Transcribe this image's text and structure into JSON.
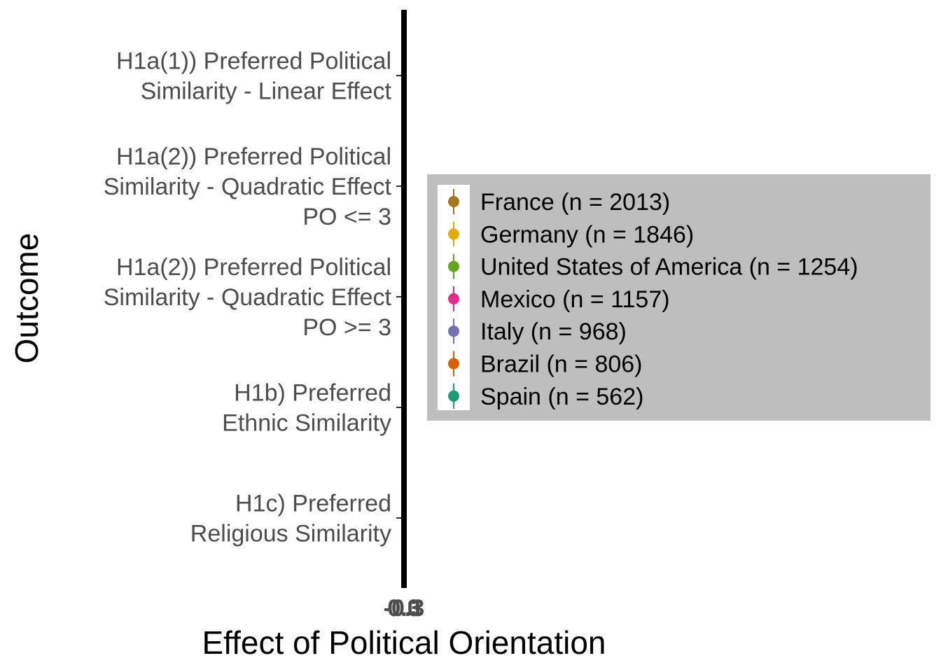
{
  "chart_data": {
    "type": "scatter",
    "title": "",
    "xlabel": "Effect of Political Orientation",
    "ylabel": "Outcome",
    "x_tick_labels": [
      "-0.3",
      "0.0",
      "0.3"
    ],
    "categories": [
      [
        "H1a(1)) Preferred Political",
        "Similarity - Linear Effect"
      ],
      [
        "H1a(2)) Preferred Political",
        "Similarity - Quadratic Effect",
        "PO <= 3"
      ],
      [
        "H1a(2)) Preferred Political",
        "Similarity - Quadratic Effect",
        "PO >= 3"
      ],
      [
        "H1b) Preferred",
        "Ethnic Similarity"
      ],
      [
        "H1c) Preferred",
        "Religious Similarity"
      ]
    ],
    "legend_position": "right",
    "grid": false,
    "series": [
      {
        "name": "France (n = 2013)",
        "color": "#A6761D",
        "values": [
          0.0,
          0.0,
          0.0,
          0.0,
          0.0
        ]
      },
      {
        "name": "Germany (n = 1846)",
        "color": "#E6AB02",
        "values": [
          0.0,
          0.0,
          0.0,
          0.0,
          0.0
        ]
      },
      {
        "name": "United States of America (n = 1254)",
        "color": "#66A61E",
        "values": [
          0.0,
          0.0,
          0.0,
          0.0,
          0.0
        ]
      },
      {
        "name": "Mexico (n = 1157)",
        "color": "#E7298A",
        "values": [
          0.0,
          0.0,
          0.0,
          0.0,
          0.0
        ]
      },
      {
        "name": "Italy (n = 968)",
        "color": "#7570B3",
        "values": [
          0.0,
          0.0,
          0.0,
          0.0,
          0.0
        ]
      },
      {
        "name": "Brazil (n = 806)",
        "color": "#D95F02",
        "values": [
          0.0,
          0.0,
          0.0,
          0.0,
          0.0
        ]
      },
      {
        "name": "Spain (n = 562)",
        "color": "#1B9E77",
        "values": [
          0.0,
          0.0,
          0.0,
          0.0,
          0.0
        ]
      }
    ]
  }
}
